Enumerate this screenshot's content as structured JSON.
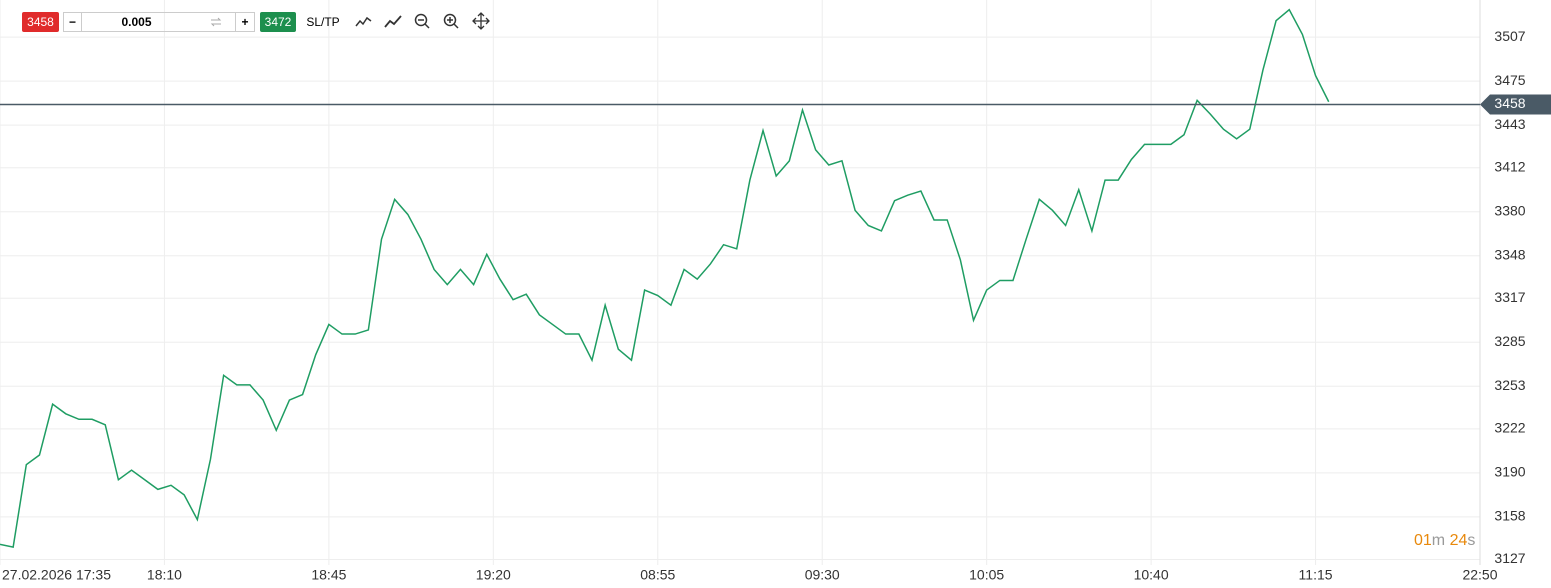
{
  "toolbar": {
    "sell": "3458",
    "minus": "−",
    "volume": "0.005",
    "plus": "+",
    "buy": "3472",
    "sltp": "SL/TP"
  },
  "timer": {
    "minutes": "01",
    "m": "m",
    "seconds": "24",
    "s": "s"
  },
  "chart_data": {
    "type": "line",
    "color": "#1f9d63",
    "grid": true,
    "current_price": 3458,
    "ylim": [
      3123,
      3534
    ],
    "yticks": [
      3127,
      3158,
      3190,
      3222,
      3253,
      3285,
      3317,
      3348,
      3380,
      3412,
      3443,
      3475,
      3507
    ],
    "xlim": [
      0,
      112.5
    ],
    "xticks": [
      {
        "value": 0,
        "label": "27.02.2026 17:35"
      },
      {
        "value": 12.5,
        "label": "18:10"
      },
      {
        "value": 25,
        "label": "18:45"
      },
      {
        "value": 37.5,
        "label": "19:20"
      },
      {
        "value": 50,
        "label": "08:55"
      },
      {
        "value": 62.5,
        "label": "09:30"
      },
      {
        "value": 75,
        "label": "10:05"
      },
      {
        "value": 87.5,
        "label": "10:40"
      },
      {
        "value": 100,
        "label": "11:15"
      },
      {
        "value": 112.5,
        "label": "22:50"
      }
    ],
    "values": [
      3138,
      3136,
      3196,
      3203,
      3240,
      3233,
      3229,
      3229,
      3225,
      3185,
      3192,
      3185,
      3178,
      3181,
      3174,
      3156,
      3200,
      3261,
      3254,
      3254,
      3243,
      3221,
      3243,
      3247,
      3276,
      3298,
      3291,
      3291,
      3294,
      3360,
      3389,
      3378,
      3360,
      3338,
      3327,
      3338,
      3327,
      3349,
      3331,
      3316,
      3320,
      3305,
      3298,
      3291,
      3291,
      3272,
      3312,
      3280,
      3272,
      3323,
      3319,
      3312,
      3338,
      3331,
      3342,
      3356,
      3353,
      3403,
      3439,
      3406,
      3417,
      3454,
      3425,
      3414,
      3417,
      3381,
      3370,
      3366,
      3388,
      3392,
      3395,
      3374,
      3374,
      3345,
      3301,
      3323,
      3330,
      3330,
      3360,
      3389,
      3381,
      3370,
      3396,
      3366,
      3403,
      3403,
      3418,
      3429,
      3429,
      3429,
      3436,
      3461,
      3451,
      3440,
      3433,
      3440,
      3483,
      3519,
      3527,
      3509,
      3479,
      3460
    ]
  }
}
